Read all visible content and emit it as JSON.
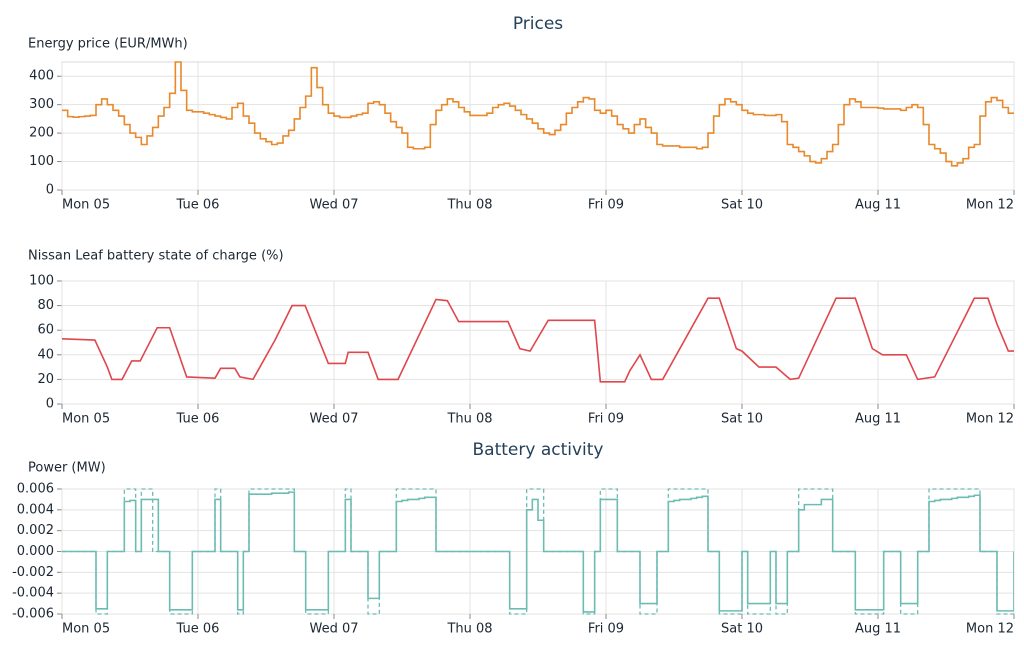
{
  "chart_data": [
    {
      "type": "line",
      "title": "Prices",
      "ylabel": "Energy price (EUR/MWh)",
      "step": true,
      "grid": true,
      "color": "#e8892b",
      "x": [
        0,
        1,
        2,
        3,
        4,
        5,
        6,
        7,
        8,
        9,
        10,
        11,
        12,
        13,
        14,
        15,
        16,
        17,
        18,
        19,
        20,
        21,
        22,
        23,
        24,
        25,
        26,
        27,
        28,
        29,
        30,
        31,
        32,
        33,
        34,
        35,
        36,
        37,
        38,
        39,
        40,
        41,
        42,
        43,
        44,
        45,
        46,
        47,
        48,
        49,
        50,
        51,
        52,
        53,
        54,
        55,
        56,
        57,
        58,
        59,
        60,
        61,
        62,
        63,
        64,
        65,
        66,
        67,
        68,
        69,
        70,
        71,
        72,
        73,
        74,
        75,
        76,
        77,
        78,
        79,
        80,
        81,
        82,
        83,
        84,
        85,
        86,
        87,
        88,
        89,
        90,
        91,
        92,
        93,
        94,
        95,
        96,
        97,
        98,
        99,
        100,
        101,
        102,
        103,
        104,
        105,
        106,
        107,
        108,
        109,
        110,
        111,
        112,
        113,
        114,
        115,
        116,
        117,
        118,
        119,
        120,
        121,
        122,
        123,
        124,
        125,
        126,
        127,
        128,
        129,
        130,
        131,
        132,
        133,
        134,
        135,
        136,
        137,
        138,
        139,
        140,
        141,
        142,
        143,
        144,
        145,
        146,
        147,
        148,
        149,
        150,
        151,
        152,
        153,
        154,
        155,
        156,
        157,
        158,
        159,
        160,
        161,
        162,
        163,
        164,
        165,
        166,
        167,
        168
      ],
      "values": [
        280,
        258,
        256,
        258,
        260,
        262,
        300,
        320,
        300,
        280,
        260,
        230,
        200,
        185,
        160,
        190,
        220,
        260,
        290,
        340,
        450,
        350,
        280,
        275,
        275,
        270,
        265,
        260,
        255,
        250,
        290,
        305,
        260,
        235,
        200,
        180,
        170,
        160,
        165,
        190,
        210,
        250,
        290,
        330,
        430,
        360,
        300,
        270,
        260,
        255,
        255,
        260,
        265,
        270,
        305,
        310,
        300,
        270,
        240,
        220,
        200,
        150,
        145,
        145,
        150,
        230,
        280,
        300,
        320,
        310,
        290,
        275,
        262,
        262,
        262,
        270,
        290,
        300,
        305,
        295,
        280,
        265,
        250,
        235,
        215,
        200,
        195,
        210,
        230,
        270,
        290,
        310,
        325,
        320,
        280,
        270,
        280,
        260,
        230,
        215,
        200,
        230,
        250,
        220,
        200,
        160,
        155,
        155,
        155,
        150,
        150,
        150,
        145,
        150,
        200,
        260,
        300,
        320,
        310,
        300,
        280,
        270,
        265,
        265,
        262,
        262,
        265,
        240,
        160,
        150,
        135,
        120,
        100,
        95,
        110,
        135,
        160,
        230,
        300,
        320,
        310,
        290,
        290,
        290,
        288,
        285,
        285,
        285,
        280,
        290,
        300,
        290,
        230,
        160,
        145,
        130,
        100,
        85,
        95,
        110,
        150,
        160,
        260,
        310,
        325,
        315,
        290,
        270,
        270
      ],
      "xlim": [
        0,
        168
      ],
      "xticks": [
        {
          "value": 0,
          "label": "Mon 05"
        },
        {
          "value": 24,
          "label": "Tue 06"
        },
        {
          "value": 48,
          "label": "Wed 07"
        },
        {
          "value": 72,
          "label": "Thu 08"
        },
        {
          "value": 96,
          "label": "Fri 09"
        },
        {
          "value": 120,
          "label": "Sat 10"
        },
        {
          "value": 144,
          "label": "Aug 11"
        },
        {
          "value": 168,
          "label": "Mon 12"
        }
      ],
      "ylim": [
        0,
        450
      ],
      "yticks": [
        0,
        100,
        200,
        300,
        400
      ]
    },
    {
      "type": "line",
      "ylabel": "Nissan Leaf battery state of charge (%)",
      "grid": true,
      "color": "#e0474c",
      "x": [
        0,
        5.8,
        8,
        8.8,
        10.6,
        12.3,
        13.8,
        16.8,
        19,
        22,
        27,
        28,
        30.5,
        31.4,
        33.7,
        37.6,
        40.6,
        42.9,
        47,
        50,
        50.5,
        54,
        55.8,
        59.3,
        66,
        68,
        70,
        78.7,
        80.8,
        82.6,
        85.8,
        94,
        95,
        99.3,
        100.2,
        102,
        104,
        106,
        114,
        116,
        119,
        120,
        123,
        126,
        128.5,
        130,
        136.6,
        140,
        143,
        144.8,
        149,
        151,
        154,
        161,
        163.4,
        165,
        167,
        168
      ],
      "values": [
        53,
        52,
        30,
        20,
        20,
        35,
        35,
        62,
        62,
        22,
        21,
        29,
        29,
        22,
        20,
        52,
        80,
        80,
        33,
        33,
        42,
        42,
        20,
        20,
        85,
        84,
        67,
        67,
        45,
        43,
        68,
        68,
        18,
        18,
        27,
        40,
        20,
        20,
        86,
        86,
        45,
        43,
        30,
        30,
        20,
        21,
        86,
        86,
        45,
        40,
        40,
        20,
        22,
        86,
        86,
        65,
        43,
        43
      ],
      "xlim": [
        0,
        168
      ],
      "xticks": [
        {
          "value": 0,
          "label": "Mon 05"
        },
        {
          "value": 24,
          "label": "Tue 06"
        },
        {
          "value": 48,
          "label": "Wed 07"
        },
        {
          "value": 72,
          "label": "Thu 08"
        },
        {
          "value": 96,
          "label": "Fri 09"
        },
        {
          "value": 120,
          "label": "Sat 10"
        },
        {
          "value": 144,
          "label": "Aug 11"
        },
        {
          "value": 168,
          "label": "Mon 12"
        }
      ],
      "ylim": [
        0,
        100
      ],
      "yticks": [
        0,
        20,
        40,
        60,
        80,
        100
      ]
    },
    {
      "type": "line",
      "title": "Battery activity",
      "ylabel": "Power (MW)",
      "step": true,
      "grid": true,
      "x": [
        0,
        1,
        2,
        3,
        4,
        5,
        6,
        7,
        8,
        9,
        10,
        11,
        12,
        13,
        14,
        15,
        16,
        17,
        18,
        19,
        20,
        21,
        22,
        23,
        24,
        25,
        26,
        27,
        28,
        29,
        30,
        31,
        32,
        33,
        34,
        35,
        36,
        37,
        38,
        39,
        40,
        41,
        42,
        43,
        44,
        45,
        46,
        47,
        48,
        49,
        50,
        51,
        52,
        53,
        54,
        55,
        56,
        57,
        58,
        59,
        60,
        61,
        62,
        63,
        64,
        65,
        66,
        67,
        68,
        69,
        70,
        71,
        72,
        73,
        74,
        75,
        76,
        77,
        78,
        79,
        80,
        81,
        82,
        83,
        84,
        85,
        86,
        87,
        88,
        89,
        90,
        91,
        92,
        93,
        94,
        95,
        96,
        97,
        98,
        99,
        100,
        101,
        102,
        103,
        104,
        105,
        106,
        107,
        108,
        109,
        110,
        111,
        112,
        113,
        114,
        115,
        116,
        117,
        118,
        119,
        120,
        121,
        122,
        123,
        124,
        125,
        126,
        127,
        128,
        129,
        130,
        131,
        132,
        133,
        134,
        135,
        136,
        137,
        138,
        139,
        140,
        141,
        142,
        143,
        144,
        145,
        146,
        147,
        148,
        149,
        150,
        151,
        152,
        153,
        154,
        155,
        156,
        157,
        158,
        159,
        160,
        161,
        162,
        163,
        164,
        165,
        166,
        167,
        168
      ],
      "series": [
        {
          "color": "#6dbcb4",
          "values": [
            0,
            0,
            0,
            0,
            0,
            0,
            -0.0055,
            -0.0055,
            0,
            0,
            0,
            0.0048,
            0.0049,
            0,
            0.005,
            0.005,
            0.005,
            0,
            0,
            -0.0056,
            -0.0056,
            -0.0056,
            -0.0056,
            0,
            0,
            0,
            0,
            0.005,
            0,
            0,
            0,
            -0.0056,
            0,
            0.0055,
            0.0055,
            0.0055,
            0.0055,
            0.0056,
            0.0056,
            0.0056,
            0.0057,
            0,
            0,
            -0.0056,
            -0.0056,
            -0.0056,
            -0.0056,
            0,
            0,
            0,
            0.005,
            0,
            0,
            0,
            -0.0045,
            -0.0045,
            0,
            0,
            0,
            0.0048,
            0.0049,
            0.005,
            0.005,
            0.0051,
            0.0052,
            0.0052,
            0,
            0,
            0,
            0,
            0,
            0,
            0,
            0,
            0,
            0,
            0,
            0,
            0,
            -0.0055,
            -0.0055,
            -0.0055,
            0.004,
            0.005,
            0.003,
            0,
            0,
            0,
            0,
            0,
            0,
            0,
            -0.0058,
            -0.0058,
            0,
            0.005,
            0.005,
            0.005,
            0,
            0,
            0,
            0,
            -0.005,
            -0.005,
            -0.005,
            0,
            0,
            0.0048,
            0.0049,
            0.005,
            0.005,
            0.0051,
            0.0052,
            0.0053,
            0,
            0,
            -0.0057,
            -0.0057,
            -0.0057,
            -0.0057,
            0,
            -0.005,
            -0.005,
            -0.005,
            -0.005,
            0,
            -0.005,
            -0.005,
            0,
            0,
            0.004,
            0.0045,
            0.0045,
            0.0045,
            0.005,
            0.005,
            0,
            0,
            0,
            0,
            -0.0056,
            -0.0056,
            -0.0056,
            -0.0056,
            -0.0056,
            0,
            0,
            0,
            -0.005,
            -0.005,
            -0.005,
            0,
            0,
            0.0048,
            0.0049,
            0.005,
            0.005,
            0.0051,
            0.0052,
            0.0052,
            0.0053,
            0.0054,
            0,
            0,
            0,
            -0.0057,
            -0.0057,
            -0.0057,
            0
          ]
        },
        {
          "color": "#6dbcb4",
          "dash": true,
          "values": [
            0,
            0,
            0,
            0,
            0,
            0,
            -0.006,
            -0.006,
            0,
            0,
            0,
            0.006,
            0.006,
            0,
            0.006,
            0.006,
            0,
            0,
            0,
            -0.006,
            -0.006,
            -0.006,
            -0.006,
            0,
            0,
            0,
            0,
            0.006,
            0,
            0,
            0,
            -0.006,
            0,
            0.006,
            0.006,
            0.006,
            0.006,
            0.006,
            0.006,
            0.006,
            0.006,
            0,
            0,
            -0.006,
            -0.006,
            -0.006,
            -0.006,
            0,
            0,
            0,
            0.006,
            0,
            0,
            0,
            -0.006,
            -0.006,
            0,
            0,
            0,
            0.006,
            0.006,
            0.006,
            0.006,
            0.006,
            0.006,
            0.006,
            0,
            0,
            0,
            0,
            0,
            0,
            0,
            0,
            0,
            0,
            0,
            0,
            0,
            -0.006,
            -0.006,
            -0.006,
            0.006,
            0.006,
            0.006,
            0,
            0,
            0,
            0,
            0,
            0,
            0,
            -0.006,
            -0.006,
            0,
            0.006,
            0.006,
            0.006,
            0,
            0,
            0,
            0,
            -0.006,
            -0.006,
            -0.006,
            0,
            0,
            0.006,
            0.006,
            0.006,
            0.006,
            0.006,
            0.006,
            0.006,
            0,
            0,
            -0.006,
            -0.006,
            -0.006,
            -0.006,
            0,
            -0.006,
            -0.006,
            -0.006,
            -0.006,
            0,
            -0.006,
            -0.006,
            0,
            0,
            0.006,
            0.006,
            0.006,
            0.006,
            0.006,
            0.006,
            0,
            0,
            0,
            0,
            -0.006,
            -0.006,
            -0.006,
            -0.006,
            -0.006,
            0,
            0,
            0,
            -0.006,
            -0.006,
            -0.006,
            0,
            0,
            0.006,
            0.006,
            0.006,
            0.006,
            0.006,
            0.006,
            0.006,
            0.006,
            0.006,
            0,
            0,
            0,
            -0.006,
            -0.006,
            -0.006,
            0
          ]
        }
      ],
      "xlim": [
        0,
        168
      ],
      "xticks": [
        {
          "value": 0,
          "label": "Mon 05"
        },
        {
          "value": 24,
          "label": "Tue 06"
        },
        {
          "value": 48,
          "label": "Wed 07"
        },
        {
          "value": 72,
          "label": "Thu 08"
        },
        {
          "value": 96,
          "label": "Fri 09"
        },
        {
          "value": 120,
          "label": "Sat 10"
        },
        {
          "value": 144,
          "label": "Aug 11"
        },
        {
          "value": 168,
          "label": "Mon 12"
        }
      ],
      "ylim": [
        -0.006,
        0.006
      ],
      "yticks": [
        -0.006,
        -0.004,
        -0.002,
        {
          "value": 0,
          "label": "0.000"
        },
        0.002,
        0.004,
        0.006
      ]
    }
  ]
}
